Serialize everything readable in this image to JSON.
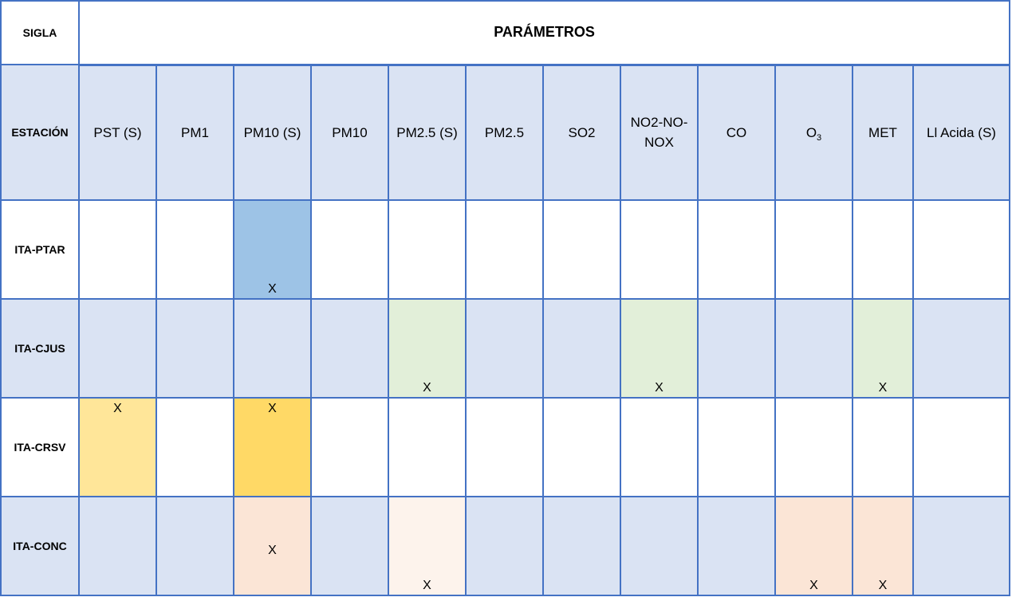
{
  "header": {
    "sigla": "SIGLA",
    "parametros": "PARÁMETROS"
  },
  "columns_header_label": "ESTACIÓN",
  "columns": [
    {
      "label": "PST (S)"
    },
    {
      "label": "PM1"
    },
    {
      "label": "PM10 (S)"
    },
    {
      "label": "PM10"
    },
    {
      "label": "PM2.5 (S)"
    },
    {
      "label": "PM2.5"
    },
    {
      "label": "SO2"
    },
    {
      "label": "NO2-NO-NOX"
    },
    {
      "label": "CO"
    },
    {
      "label": "O",
      "sub": "3"
    },
    {
      "label": "MET"
    },
    {
      "label": "Ll Acida (S)"
    }
  ],
  "rows": [
    {
      "station": "ITA-PTAR",
      "row_bg": "#ffffff",
      "cells": [
        {},
        {},
        {
          "mark": "X",
          "pos": "bot",
          "bg": "#9dc3e6"
        },
        {},
        {},
        {},
        {},
        {},
        {},
        {},
        {},
        {}
      ]
    },
    {
      "station": "ITA-CJUS",
      "row_bg": "#dae3f3",
      "cells": [
        {},
        {},
        {},
        {},
        {
          "mark": "X",
          "pos": "bot",
          "bg": "#e2efd9"
        },
        {},
        {},
        {
          "mark": "X",
          "pos": "bot",
          "bg": "#e2efd9"
        },
        {},
        {},
        {
          "mark": "X",
          "pos": "bot",
          "bg": "#e2efd9"
        },
        {}
      ]
    },
    {
      "station": "ITA-CRSV",
      "row_bg": "#ffffff",
      "cells": [
        {
          "mark": "X",
          "pos": "top",
          "bg": "#ffe699"
        },
        {},
        {
          "mark": "X",
          "pos": "top",
          "bg": "#ffd966"
        },
        {},
        {},
        {},
        {},
        {},
        {},
        {},
        {},
        {}
      ]
    },
    {
      "station": "ITA-CONC",
      "row_bg": "#dae3f3",
      "cells": [
        {},
        {},
        {
          "mark": "X",
          "pos": "mid",
          "bg": "#fbe5d6"
        },
        {},
        {
          "mark": "X",
          "pos": "bot",
          "bg": "#fdf3ec"
        },
        {},
        {},
        {},
        {},
        {
          "mark": "X",
          "pos": "bot",
          "bg": "#fbe5d6"
        },
        {
          "mark": "X",
          "pos": "bot",
          "bg": "#fbe5d6"
        },
        {}
      ]
    }
  ]
}
